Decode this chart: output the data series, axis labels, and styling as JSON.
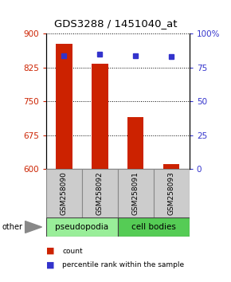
{
  "title": "GDS3288 / 1451040_at",
  "samples": [
    "GSM258090",
    "GSM258092",
    "GSM258091",
    "GSM258093"
  ],
  "bar_values": [
    878,
    833,
    716,
    612
  ],
  "percentile_values": [
    84,
    85,
    84,
    83
  ],
  "ylim_left": [
    600,
    900
  ],
  "ylim_right": [
    0,
    100
  ],
  "yticks_left": [
    600,
    675,
    750,
    825,
    900
  ],
  "yticks_right": [
    0,
    25,
    50,
    75,
    100
  ],
  "ytick_labels_right": [
    "0",
    "25",
    "50",
    "75",
    "100%"
  ],
  "bar_color": "#cc2200",
  "marker_color": "#3333cc",
  "bar_width": 0.45,
  "groups": [
    {
      "label": "pseudopodia",
      "samples": [
        0,
        1
      ],
      "color": "#99ee99"
    },
    {
      "label": "cell bodies",
      "samples": [
        2,
        3
      ],
      "color": "#55cc55"
    }
  ],
  "other_label": "other",
  "legend_count_label": "count",
  "legend_percentile_label": "percentile rank within the sample",
  "left_tick_color": "#cc2200",
  "right_tick_color": "#3333cc"
}
